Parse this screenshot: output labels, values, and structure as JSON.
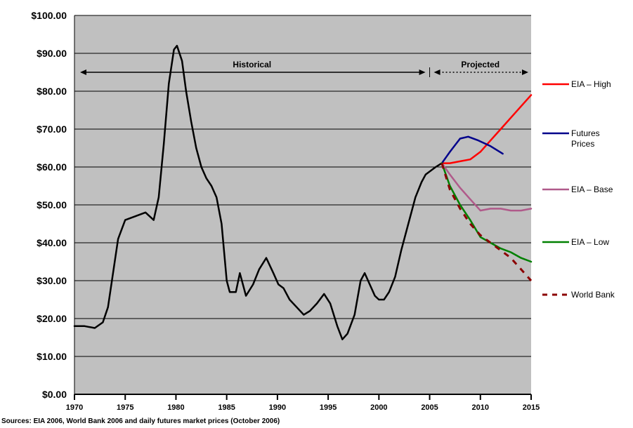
{
  "chart_data": {
    "type": "line",
    "title": "",
    "xlabel": "",
    "ylabel": "",
    "y_tick_labels": [
      "$0.00",
      "$10.00",
      "$20.00",
      "$30.00",
      "$40.00",
      "$50.00",
      "$60.00",
      "$70.00",
      "$80.00",
      "$90.00",
      "$100.00"
    ],
    "y_ticks": [
      0,
      10,
      20,
      30,
      40,
      50,
      60,
      70,
      80,
      90,
      100
    ],
    "ylim": [
      0,
      100
    ],
    "x_tick_labels": [
      "1970",
      "1975",
      "1980",
      "1985",
      "1990",
      "1995",
      "2000",
      "2005",
      "2010",
      "2015"
    ],
    "x_ticks": [
      1970,
      1975,
      1980,
      1985,
      1990,
      1995,
      2000,
      2005,
      2010,
      2015
    ],
    "xlim": [
      1970,
      2015
    ],
    "grid": true,
    "plot_background": "#c0c0c0",
    "annotations": {
      "historical": "Historical",
      "projected": "Projected",
      "divider_year": 2005
    },
    "legend_position": "right",
    "series": [
      {
        "name": "Historical",
        "color": "#000000",
        "style": "solid",
        "x": [
          1970,
          1971,
          1972,
          1972.8,
          1973.3,
          1973.8,
          1974.3,
          1975,
          1976,
          1977,
          1977.8,
          1978.3,
          1978.8,
          1979.3,
          1979.8,
          1980.1,
          1980.6,
          1981,
          1981.5,
          1982,
          1982.5,
          1983,
          1983.5,
          1984,
          1984.5,
          1985,
          1985.3,
          1985.9,
          1986.3,
          1986.9,
          1987.6,
          1988.2,
          1988.9,
          1989.6,
          1990.1,
          1990.6,
          1991.2,
          1991.9,
          1992.6,
          1993.2,
          1993.9,
          1994.6,
          1995.2,
          1995.9,
          1996.4,
          1996.9,
          1997.6,
          1998.2,
          1998.6,
          1999.1,
          1999.6,
          2000,
          2000.5,
          2001,
          2001.6,
          2002.2,
          2002.9,
          2003.6,
          2004.2,
          2004.6,
          2005.1,
          2005.6,
          2006.2
        ],
        "values": [
          18,
          18,
          17.5,
          19,
          23,
          32,
          41,
          46,
          47,
          48,
          46,
          52,
          66,
          82,
          91,
          92,
          88,
          80,
          72,
          65,
          60,
          57,
          55,
          52,
          45,
          30,
          27,
          27,
          32,
          26,
          29,
          33,
          36,
          32,
          29,
          28,
          25,
          23,
          21,
          22,
          24,
          26.5,
          24,
          18,
          14.5,
          16,
          21,
          30,
          32,
          29,
          26,
          25,
          25,
          27,
          31,
          38,
          45,
          52,
          56,
          58,
          59,
          60,
          61
        ]
      },
      {
        "name": "EIA – High",
        "color": "#ff0000",
        "style": "solid",
        "x": [
          2006.2,
          2007,
          2008,
          2009,
          2010,
          2011,
          2012,
          2013,
          2014,
          2015
        ],
        "values": [
          61,
          61,
          61.5,
          62,
          64,
          67,
          70,
          73,
          76,
          79
        ]
      },
      {
        "name": "Futures Prices",
        "color": "#00008b",
        "style": "solid",
        "x": [
          2006.2,
          2007,
          2008,
          2008.8,
          2009.8,
          2011,
          2012.2
        ],
        "values": [
          61,
          64,
          67.5,
          68,
          67,
          65.5,
          63.5
        ]
      },
      {
        "name": "EIA – Base",
        "color": "#b05a8a",
        "style": "solid",
        "x": [
          2006.2,
          2007,
          2008,
          2009,
          2010,
          2011,
          2012,
          2013,
          2014,
          2015
        ],
        "values": [
          61,
          58,
          54.5,
          51.5,
          48.5,
          49,
          49,
          48.5,
          48.5,
          49
        ]
      },
      {
        "name": "EIA – Low",
        "color": "#008000",
        "style": "solid",
        "x": [
          2006.2,
          2007,
          2008,
          2009,
          2010,
          2011,
          2012,
          2013,
          2014,
          2015
        ],
        "values": [
          61,
          55,
          50,
          46,
          41.5,
          40,
          38.5,
          37.5,
          36,
          35
        ]
      },
      {
        "name": "World Bank",
        "color": "#8b0000",
        "style": "dashed",
        "x": [
          2006.2,
          2007,
          2008,
          2009,
          2010,
          2011,
          2012,
          2013,
          2014,
          2015
        ],
        "values": [
          61,
          54,
          49,
          45,
          42,
          40,
          38,
          36,
          33,
          30
        ]
      }
    ],
    "source_note": "Sources: EIA 2006, World Bank 2006 and daily futures market prices (October 2006)"
  }
}
